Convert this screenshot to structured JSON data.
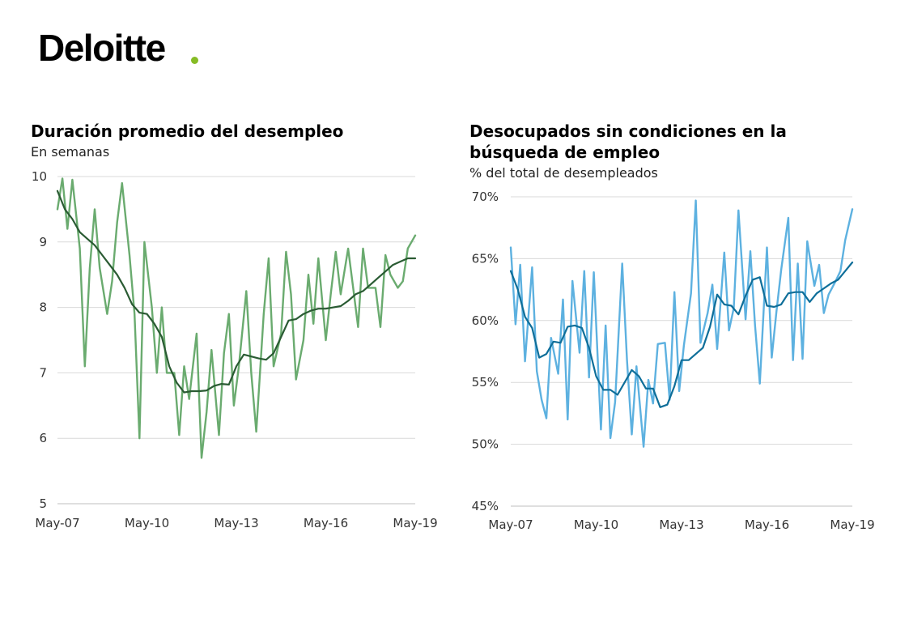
{
  "logo": {
    "text": "Deloitte",
    "dot_color": "#86bc25"
  },
  "charts": {
    "left": {
      "title": "Duración promedio del desempleo",
      "subtitle": "En semanas"
    },
    "right": {
      "title_line1": "Desocupados sin condiciones en la",
      "title_line2": "búsqueda de empleo",
      "subtitle": "% del total de desempleados"
    }
  },
  "chart_data": [
    {
      "type": "line",
      "title": "Duración promedio del desempleo",
      "subtitle": "En semanas",
      "x_range": [
        "May-07",
        "May-19"
      ],
      "x_ticks": [
        "May-07",
        "May-10",
        "May-13",
        "May-16",
        "May-19"
      ],
      "ylim": [
        5,
        10
      ],
      "y_ticks": [
        5,
        6,
        7,
        8,
        9,
        10
      ],
      "y_tick_labels": [
        "5",
        "6",
        "7",
        "8",
        "9",
        "10"
      ],
      "grid": true,
      "series": [
        {
          "color": "#6aab6f",
          "x": [
            "May-07",
            "Jul-07",
            "Sep-07",
            "Nov-07",
            "Feb-08",
            "Apr-08",
            "Jun-08",
            "Aug-08",
            "Oct-08",
            "Jan-09",
            "Mar-09",
            "May-09",
            "Jul-09",
            "Oct-09",
            "Dec-09",
            "Feb-10",
            "Apr-10",
            "Jul-10",
            "Sep-10",
            "Nov-10",
            "Jan-11",
            "Apr-11",
            "Jun-11",
            "Aug-11",
            "Oct-11",
            "Jan-12",
            "Mar-12",
            "May-12",
            "Jul-12",
            "Oct-12",
            "Dec-12",
            "Feb-13",
            "Apr-13",
            "Jun-13",
            "Sep-13",
            "Nov-13",
            "Jan-14",
            "Apr-14",
            "Jun-14",
            "Aug-14",
            "Nov-14",
            "Jan-15",
            "Mar-15",
            "May-15",
            "Aug-15",
            "Oct-15",
            "Dec-15",
            "Feb-16",
            "May-16",
            "Jul-16",
            "Sep-16",
            "Nov-16",
            "Feb-17",
            "Apr-17",
            "Jun-17",
            "Aug-17",
            "Oct-17",
            "Jan-18",
            "Mar-18",
            "May-18",
            "Jul-18",
            "Oct-18",
            "Dec-18",
            "Feb-19",
            "May-19"
          ],
          "values": [
            9.5,
            9.97,
            9.2,
            9.95,
            8.9,
            7.1,
            8.6,
            9.5,
            8.6,
            7.9,
            8.4,
            9.3,
            9.9,
            8.8,
            7.9,
            6.0,
            9.0,
            8.0,
            7.0,
            8.0,
            7.0,
            7.0,
            6.05,
            7.1,
            6.6,
            7.6,
            5.7,
            6.4,
            7.35,
            6.05,
            7.3,
            7.9,
            6.5,
            7.1,
            8.25,
            7.0,
            6.1,
            7.9,
            8.75,
            7.1,
            7.6,
            8.85,
            8.2,
            6.9,
            7.5,
            8.5,
            7.75,
            8.75,
            7.5,
            8.2,
            8.85,
            8.2,
            8.9,
            8.3,
            7.7,
            8.9,
            8.3,
            8.3,
            7.7,
            8.8,
            8.5,
            8.3,
            8.4,
            8.9,
            9.1
          ]
        },
        {
          "color": "#2a5b33",
          "x": [
            "May-07",
            "Aug-07",
            "Nov-07",
            "Feb-08",
            "May-08",
            "Aug-08",
            "Nov-08",
            "Feb-09",
            "May-09",
            "Aug-09",
            "Nov-09",
            "Feb-10",
            "May-10",
            "Aug-10",
            "Nov-10",
            "Feb-11",
            "May-11",
            "Aug-11",
            "Nov-11",
            "Feb-12",
            "May-12",
            "Aug-12",
            "Nov-12",
            "Feb-13",
            "May-13",
            "Aug-13",
            "Nov-13",
            "Feb-14",
            "May-14",
            "Aug-14",
            "Nov-14",
            "Feb-15",
            "May-15",
            "Aug-15",
            "Nov-15",
            "Feb-16",
            "May-16",
            "Aug-16",
            "Nov-16",
            "Feb-17",
            "May-17",
            "Aug-17",
            "Nov-17",
            "Feb-18",
            "May-18",
            "Aug-18",
            "Nov-18",
            "Feb-19",
            "May-19"
          ],
          "values": [
            9.78,
            9.5,
            9.35,
            9.15,
            9.05,
            8.95,
            8.8,
            8.65,
            8.5,
            8.3,
            8.05,
            7.92,
            7.9,
            7.75,
            7.55,
            7.1,
            6.85,
            6.7,
            6.72,
            6.72,
            6.73,
            6.8,
            6.83,
            6.82,
            7.1,
            7.28,
            7.25,
            7.22,
            7.2,
            7.3,
            7.55,
            7.8,
            7.82,
            7.9,
            7.95,
            7.98,
            7.98,
            8.0,
            8.02,
            8.1,
            8.2,
            8.25,
            8.35,
            8.45,
            8.55,
            8.65,
            8.7,
            8.75,
            8.75
          ]
        }
      ]
    },
    {
      "type": "line",
      "title": "Desocupados sin condiciones en la búsqueda de empleo",
      "subtitle": "% del total de desempleados",
      "x_range": [
        "May-07",
        "May-19"
      ],
      "x_ticks": [
        "May-07",
        "May-10",
        "May-13",
        "May-16",
        "May-19"
      ],
      "ylim": [
        45,
        70
      ],
      "y_ticks": [
        45,
        50,
        55,
        60,
        65,
        70
      ],
      "y_tick_labels": [
        "45%",
        "50%",
        "55%",
        "60%",
        "65%",
        "70%"
      ],
      "grid": true,
      "series": [
        {
          "color": "#5db1e0",
          "x": [
            "May-07",
            "Jul-07",
            "Sep-07",
            "Nov-07",
            "Feb-08",
            "Apr-08",
            "Jun-08",
            "Aug-08",
            "Oct-08",
            "Jan-09",
            "Mar-09",
            "May-09",
            "Jul-09",
            "Oct-09",
            "Dec-09",
            "Feb-10",
            "Apr-10",
            "Jul-10",
            "Sep-10",
            "Nov-10",
            "Jan-11",
            "Apr-11",
            "Jun-11",
            "Aug-11",
            "Oct-11",
            "Jan-12",
            "Mar-12",
            "May-12",
            "Jul-12",
            "Oct-12",
            "Dec-12",
            "Feb-13",
            "Apr-13",
            "Jun-13",
            "Sep-13",
            "Nov-13",
            "Jan-14",
            "Apr-14",
            "Jun-14",
            "Aug-14",
            "Nov-14",
            "Jan-15",
            "Mar-15",
            "May-15",
            "Aug-15",
            "Oct-15",
            "Dec-15",
            "Feb-16",
            "May-16",
            "Jul-16",
            "Sep-16",
            "Nov-16",
            "Feb-17",
            "Apr-17",
            "Jun-17",
            "Aug-17",
            "Oct-17",
            "Jan-18",
            "Mar-18",
            "May-18",
            "Jul-18",
            "Oct-18",
            "Dec-18",
            "Feb-19",
            "May-19"
          ],
          "values": [
            65.9,
            59.7,
            64.5,
            56.7,
            64.3,
            55.9,
            53.6,
            52.1,
            58.6,
            55.7,
            61.7,
            52.0,
            63.2,
            57.4,
            64.0,
            55.4,
            63.9,
            51.2,
            59.6,
            50.5,
            53.4,
            64.6,
            56.8,
            50.8,
            56.3,
            49.8,
            55.2,
            53.3,
            58.1,
            58.2,
            53.6,
            62.3,
            54.3,
            58.0,
            62.2,
            69.7,
            58.2,
            60.6,
            62.9,
            57.7,
            65.5,
            59.2,
            61.0,
            68.9,
            60.1,
            65.6,
            59.6,
            54.9,
            65.9,
            57.0,
            60.7,
            64.1,
            68.3,
            56.8,
            64.6,
            56.9,
            66.4,
            62.8,
            64.5,
            60.6,
            62.1,
            63.2,
            64.0,
            66.5,
            69.0
          ]
        },
        {
          "color": "#0e6e99",
          "x": [
            "May-07",
            "Aug-07",
            "Nov-07",
            "Feb-08",
            "May-08",
            "Aug-08",
            "Nov-08",
            "Feb-09",
            "May-09",
            "Aug-09",
            "Nov-09",
            "Feb-10",
            "May-10",
            "Aug-10",
            "Nov-10",
            "Feb-11",
            "May-11",
            "Aug-11",
            "Nov-11",
            "Feb-12",
            "May-12",
            "Aug-12",
            "Nov-12",
            "Feb-13",
            "May-13",
            "Aug-13",
            "Nov-13",
            "Feb-14",
            "May-14",
            "Aug-14",
            "Nov-14",
            "Feb-15",
            "May-15",
            "Aug-15",
            "Nov-15",
            "Feb-16",
            "May-16",
            "Aug-16",
            "Nov-16",
            "Feb-17",
            "May-17",
            "Aug-17",
            "Nov-17",
            "Feb-18",
            "May-18",
            "Aug-18",
            "Nov-18",
            "Feb-19",
            "May-19"
          ],
          "values": [
            64.0,
            62.5,
            60.3,
            59.4,
            57.0,
            57.3,
            58.3,
            58.2,
            59.5,
            59.6,
            59.4,
            57.8,
            55.5,
            54.4,
            54.4,
            54.0,
            55.0,
            56.0,
            55.5,
            54.5,
            54.5,
            53.0,
            53.2,
            54.7,
            56.8,
            56.8,
            57.3,
            57.8,
            59.5,
            62.1,
            61.3,
            61.2,
            60.5,
            62.0,
            63.3,
            63.5,
            61.2,
            61.1,
            61.3,
            62.2,
            62.3,
            62.3,
            61.5,
            62.2,
            62.6,
            63.0,
            63.3,
            64.0,
            64.7
          ]
        }
      ]
    }
  ]
}
